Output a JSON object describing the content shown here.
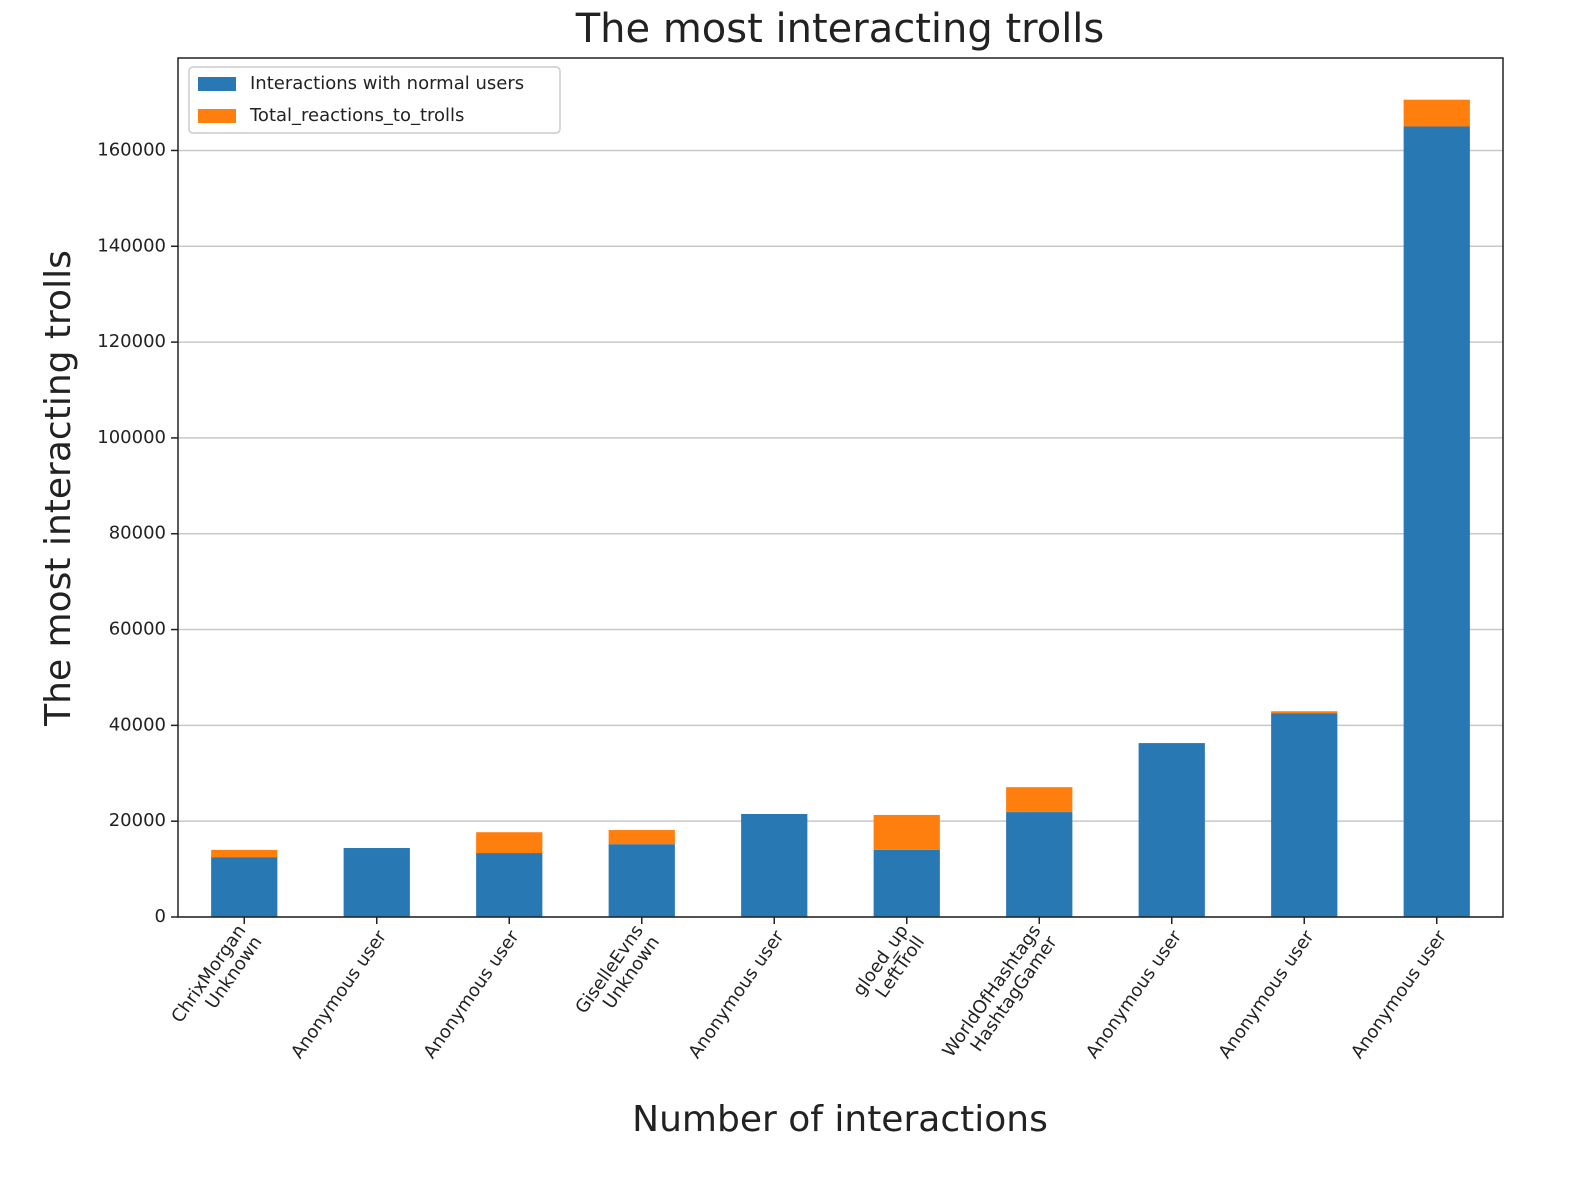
{
  "chart_data": {
    "type": "stacked_bar",
    "title": "The most interacting trolls",
    "xlabel": "Number of interactions",
    "ylabel": "The most interacting trolls",
    "categories": [
      "ChrixMorgan\nUnknown",
      "Anonymous user",
      "Anonymous user",
      "GiselleEvns\nUnknown",
      "Anonymous user",
      "gloed_up\nLeftTroll",
      "WorldOfHashtags\nHashtagGamer",
      "Anonymous user",
      "Anonymous user",
      "Anonymous user"
    ],
    "series": [
      {
        "name": "Interactions with normal users",
        "color": "#2878b4",
        "values": [
          12500,
          14400,
          13350,
          15200,
          21500,
          14000,
          21900,
          36300,
          42550,
          165000
        ]
      },
      {
        "name": "Total_reactions_to_trolls",
        "color": "#ff7f0e",
        "values": [
          1500,
          0,
          4350,
          2950,
          0,
          7300,
          5200,
          0,
          400,
          5600
        ]
      }
    ],
    "ylim": [
      0,
      179300
    ],
    "yticks": [
      0,
      20000,
      40000,
      60000,
      80000,
      100000,
      120000,
      140000,
      160000
    ],
    "grid": true,
    "legend": "upper left"
  }
}
